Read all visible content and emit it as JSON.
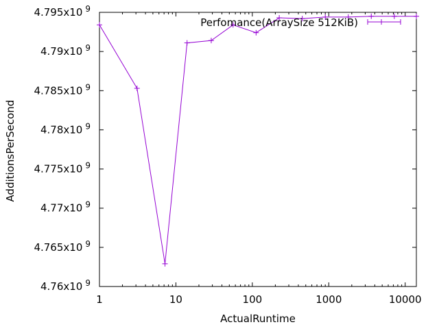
{
  "chart_data": {
    "type": "line",
    "title": "",
    "xlabel": "ActualRuntime",
    "ylabel": "AdditionsPerSecond",
    "x_scale": "log",
    "xlim": [
      1,
      14000
    ],
    "ylim": [
      4760000000.0,
      4795000000.0
    ],
    "x_ticks": [
      {
        "value": 1,
        "label": "1"
      },
      {
        "value": 10,
        "label": "10"
      },
      {
        "value": 100,
        "label": "100"
      },
      {
        "value": 1000,
        "label": "1000"
      },
      {
        "value": 10000,
        "label": "10000"
      }
    ],
    "y_ticks": [
      {
        "value": 4760000000.0,
        "mantissa": "4.76x10",
        "exp": "9"
      },
      {
        "value": 4765000000.0,
        "mantissa": "4.765x10",
        "exp": "9"
      },
      {
        "value": 4770000000.0,
        "mantissa": "4.77x10",
        "exp": "9"
      },
      {
        "value": 4775000000.0,
        "mantissa": "4.775x10",
        "exp": "9"
      },
      {
        "value": 4780000000.0,
        "mantissa": "4.78x10",
        "exp": "9"
      },
      {
        "value": 4785000000.0,
        "mantissa": "4.785x10",
        "exp": "9"
      },
      {
        "value": 4790000000.0,
        "mantissa": "4.79x10",
        "exp": "9"
      },
      {
        "value": 4795000000.0,
        "mantissa": "4.795x10",
        "exp": "9"
      }
    ],
    "grid": false,
    "legend_position": "top-right",
    "series": [
      {
        "name": "Perfomance(ArraySize 512KiB)",
        "color": "#9400d3",
        "marker": "plus",
        "x": [
          1,
          3.1,
          7.2,
          14,
          29,
          56,
          112,
          225,
          450,
          900,
          1800,
          3600,
          7200,
          14000
        ],
        "y": [
          4793400000.0,
          4785300000.0,
          4762900000.0,
          4791100000.0,
          4791400000.0,
          4793400000.0,
          4792400000.0,
          4794300000.0,
          4794200000.0,
          4794400000.0,
          4794400000.0,
          4794500000.0,
          4794500000.0,
          4794500000.0
        ]
      }
    ]
  }
}
